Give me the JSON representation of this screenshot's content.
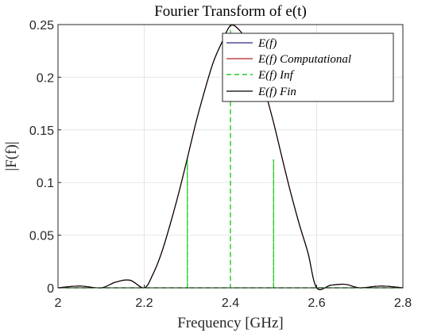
{
  "chart_data": {
    "type": "line",
    "title": "Fourier Transform of e(t)",
    "xlabel": "Frequency [GHz]",
    "ylabel": "|F(f)|",
    "xlim": [
      2,
      2.8
    ],
    "ylim": [
      0,
      0.25
    ],
    "xticks": [
      "2",
      "2.2",
      "2.4",
      "2.6",
      "2.8"
    ],
    "yticks": [
      "0",
      "0.05",
      "0.1",
      "0.15",
      "0.2",
      "0.25"
    ],
    "grid": true,
    "legend_position": "top-right",
    "series": [
      {
        "name": "E(f)",
        "color": "#2a2a8c",
        "style": "solid",
        "x": [
          2.0,
          2.05,
          2.1,
          2.133,
          2.167,
          2.2,
          2.22,
          2.24,
          2.26,
          2.28,
          2.3,
          2.32,
          2.34,
          2.36,
          2.38,
          2.4,
          2.42,
          2.44,
          2.46,
          2.48,
          2.5,
          2.52,
          2.54,
          2.56,
          2.58,
          2.6,
          2.633,
          2.667,
          2.7,
          2.75,
          2.8
        ],
        "y": [
          0.0,
          0.0017,
          0.0,
          0.0053,
          0.0072,
          0.0,
          0.0127,
          0.033,
          0.06,
          0.09,
          0.123,
          0.157,
          0.187,
          0.214,
          0.233,
          0.249,
          0.245,
          0.233,
          0.214,
          0.187,
          0.157,
          0.123,
          0.09,
          0.06,
          0.033,
          0.0,
          0.0025,
          0.0033,
          0.0,
          0.0017,
          0.0
        ]
      },
      {
        "name": "E(f)    Computational",
        "color": "#b22222",
        "style": "solid",
        "x": [
          2.0,
          2.05,
          2.1,
          2.133,
          2.167,
          2.2,
          2.22,
          2.24,
          2.26,
          2.28,
          2.3,
          2.32,
          2.34,
          2.36,
          2.38,
          2.4,
          2.42,
          2.44,
          2.46,
          2.48,
          2.5,
          2.52,
          2.54,
          2.56,
          2.58,
          2.6,
          2.633,
          2.667,
          2.7,
          2.75,
          2.8
        ],
        "y": [
          0.0,
          0.0017,
          0.0,
          0.0053,
          0.0072,
          0.0,
          0.0127,
          0.033,
          0.06,
          0.09,
          0.123,
          0.157,
          0.187,
          0.214,
          0.233,
          0.249,
          0.245,
          0.233,
          0.214,
          0.187,
          0.157,
          0.123,
          0.09,
          0.06,
          0.033,
          0.0,
          0.0025,
          0.0033,
          0.0,
          0.0017,
          0.0
        ]
      },
      {
        "name": "E(f)    Inf",
        "color": "#22cc22",
        "style": "dashed",
        "x": [
          2.0,
          2.3,
          2.3,
          2.3,
          2.4,
          2.4,
          2.4,
          2.5,
          2.5,
          2.5,
          2.8
        ],
        "y": [
          0.0,
          0.0,
          0.122,
          0.0,
          0.0,
          0.25,
          0.0,
          0.0,
          0.122,
          0.0,
          0.0
        ]
      },
      {
        "name": "E(f)    Fin",
        "color": "#000000",
        "style": "solid",
        "x": [
          2.0,
          2.05,
          2.1,
          2.133,
          2.167,
          2.2,
          2.22,
          2.24,
          2.26,
          2.28,
          2.3,
          2.32,
          2.34,
          2.36,
          2.38,
          2.4,
          2.42,
          2.44,
          2.46,
          2.48,
          2.5,
          2.52,
          2.54,
          2.56,
          2.58,
          2.6,
          2.633,
          2.667,
          2.7,
          2.75,
          2.8
        ],
        "y": [
          0.0,
          0.0017,
          0.0,
          0.0053,
          0.0072,
          0.0,
          0.0127,
          0.033,
          0.06,
          0.09,
          0.123,
          0.157,
          0.187,
          0.214,
          0.233,
          0.249,
          0.245,
          0.233,
          0.214,
          0.187,
          0.157,
          0.123,
          0.09,
          0.06,
          0.033,
          0.0,
          0.0025,
          0.0033,
          0.0,
          0.0017,
          0.0
        ]
      }
    ]
  }
}
